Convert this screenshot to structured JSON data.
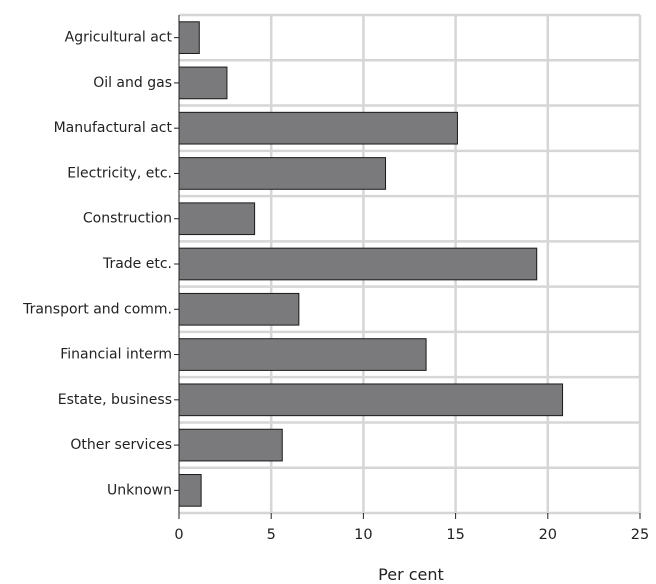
{
  "chart_data": {
    "type": "bar",
    "orientation": "horizontal",
    "categories": [
      "Agricultural act",
      "Oil and gas",
      "Manufactural act",
      "Electricity, etc.",
      "Construction",
      "Trade etc.",
      "Transport and comm.",
      "Financial interm",
      "Estate, business",
      "Other services",
      "Unknown"
    ],
    "values": [
      1.1,
      2.6,
      15.1,
      11.2,
      4.1,
      19.4,
      6.5,
      13.4,
      20.8,
      5.6,
      1.2
    ],
    "xlabel": "Per cent",
    "ylabel": "",
    "xlim": [
      0,
      25
    ],
    "xticks": [
      "0",
      "5",
      "10",
      "15",
      "20",
      "25"
    ],
    "grid": true,
    "bar_color": "#7a7a7c",
    "grid_color": "#d6d6d6"
  }
}
